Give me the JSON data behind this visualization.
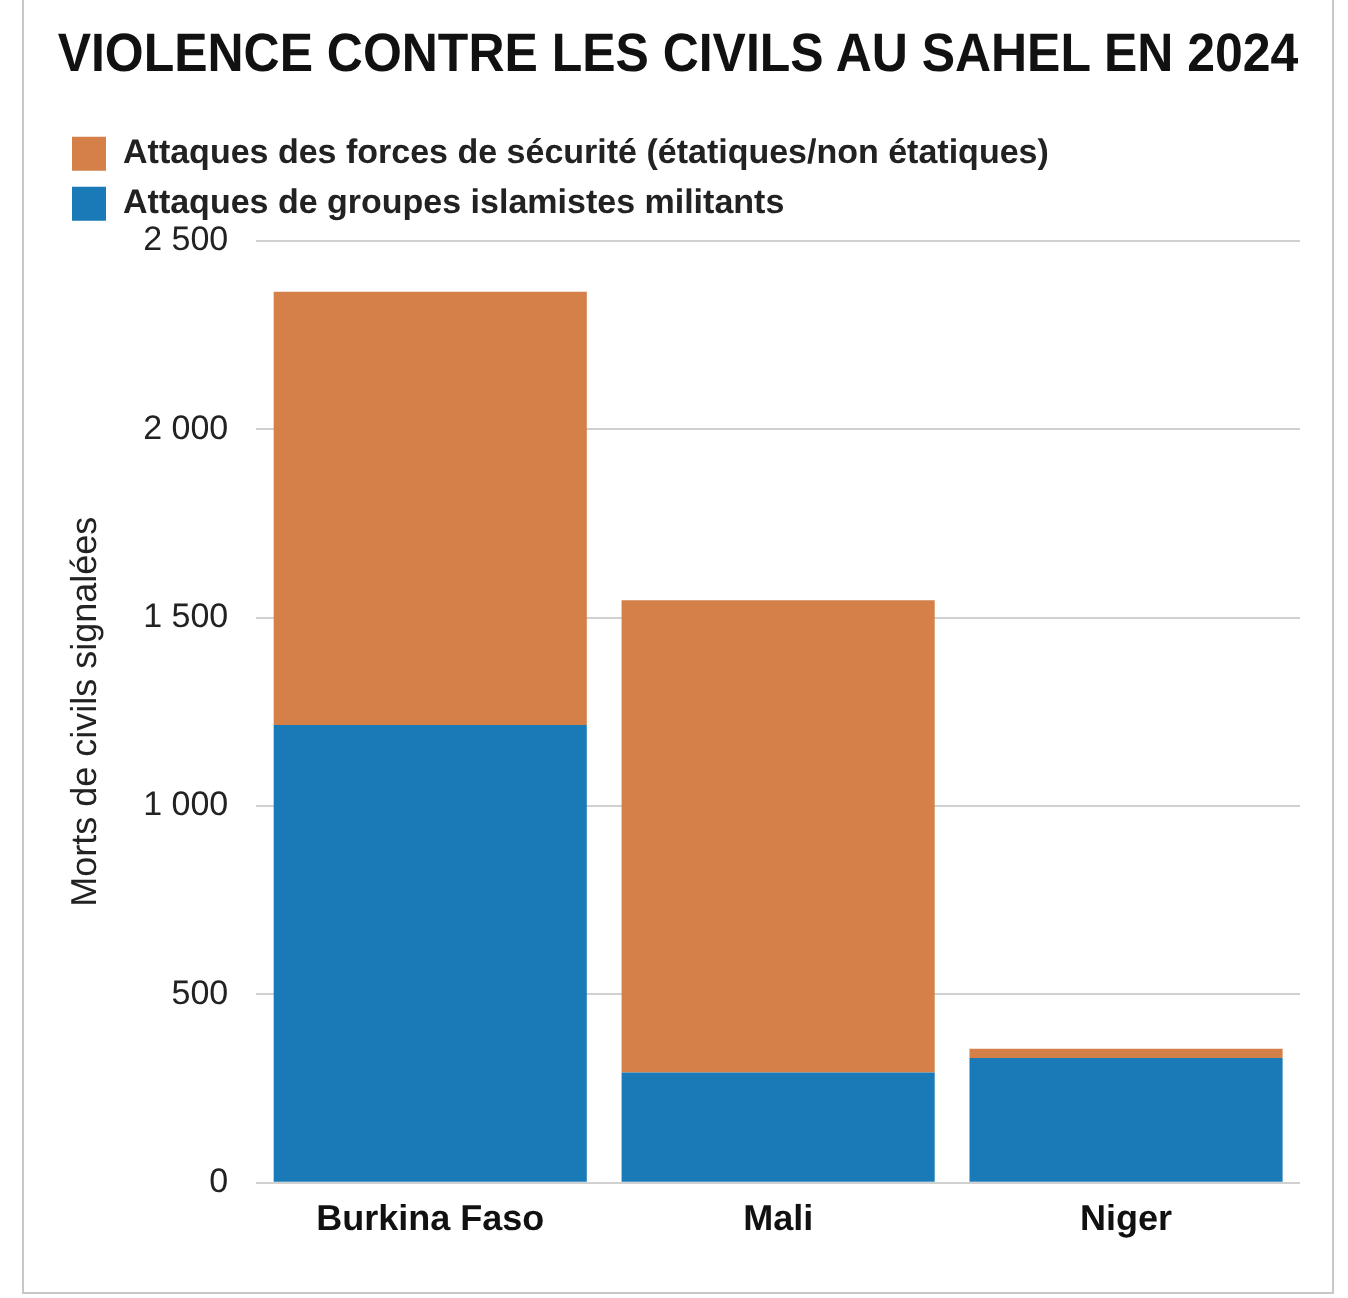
{
  "chart_data": {
    "type": "bar",
    "title": "VIOLENCE CONTRE LES CIVILS AU SAHEL EN 2024",
    "ylabel": "Morts de civils signalées",
    "categories": [
      "Burkina Faso",
      "Mali",
      "Niger"
    ],
    "stacked": true,
    "series": [
      {
        "name": "Attaques de groupes islamistes militants",
        "color": "#1a7ab8",
        "values": [
          1215,
          293,
          331
        ]
      },
      {
        "name": "Attaques des forces de sécurité (étatiques/non étatiques)",
        "color": "#d57f49",
        "values": [
          1150,
          1253,
          25
        ]
      }
    ],
    "ylim": [
      0,
      2500
    ],
    "yticks": [
      0,
      500,
      {
        "value": 1000,
        "label": "1 000"
      },
      {
        "value": 1500,
        "label": "1 500"
      },
      {
        "value": 2000,
        "label": "2 000"
      },
      {
        "value": 2500,
        "label": "2 500"
      }
    ],
    "grid": "y",
    "legend": "top left"
  }
}
